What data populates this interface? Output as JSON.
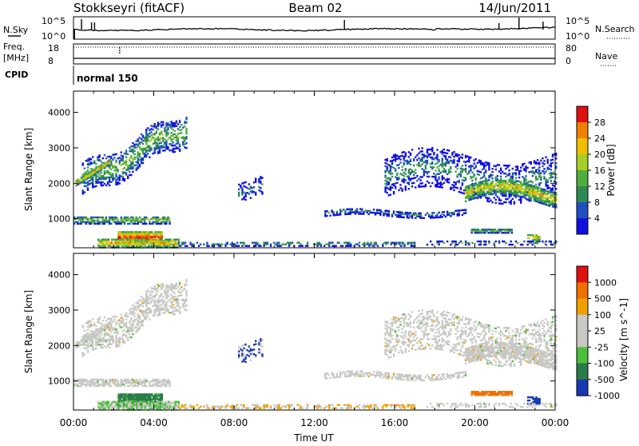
{
  "header": {
    "station": "Stokkseyri (fitACF)",
    "beam": "Beam 02",
    "date": "14/Jun/2011"
  },
  "ancillary": {
    "nsky_label": "N.Sky",
    "nsearch_label": "N.Search",
    "freq_label_1": "Freq.",
    "freq_label_2": "[MHz]",
    "nave_label": "Nave",
    "cpid_label": "CPID",
    "cpid_value": "normal 150",
    "noise_ticks": [
      "10^5",
      "10^0"
    ],
    "freq_ticks": [
      "18",
      "8"
    ],
    "nave_ticks": [
      "80",
      "0"
    ]
  },
  "colors": {
    "power": [
      "#1010e0",
      "#2050c0",
      "#2e8b57",
      "#4fae3c",
      "#a8cc28",
      "#f0c000",
      "#f08000",
      "#e01010"
    ],
    "velocity": [
      "#1838b0",
      "#2a7a4a",
      "#4bbf3a",
      "#c8c8c4",
      "#c8c8c4",
      "#f0a000",
      "#f07000",
      "#e01010"
    ]
  },
  "chart_data": [
    {
      "type": "heatmap",
      "title": "Power",
      "ylabel": "Slant Range [km]",
      "xlabel": "",
      "x_range": [
        "00:00",
        "24:00"
      ],
      "ylim": [
        180,
        4600
      ],
      "x_ticks": [
        "00:00",
        "04:00",
        "08:00",
        "12:00",
        "16:00",
        "20:00",
        "00:00"
      ],
      "y_ticks": [
        1000,
        2000,
        3000,
        4000
      ],
      "colorbar_label": "Power [dB]",
      "colorbar_ticks": [
        "28",
        "24",
        "20",
        "16",
        "12",
        "8",
        "4"
      ],
      "colorbar_range": [
        0,
        30
      ]
    },
    {
      "type": "heatmap",
      "title": "Velocity",
      "ylabel": "Slant Range [km]",
      "xlabel": "Time UT",
      "x_range": [
        "00:00",
        "24:00"
      ],
      "ylim": [
        180,
        4600
      ],
      "x_ticks": [
        "00:00",
        "04:00",
        "08:00",
        "12:00",
        "16:00",
        "20:00",
        "00:00"
      ],
      "y_ticks": [
        1000,
        2000,
        3000,
        4000
      ],
      "colorbar_label": "Velocity [m s^-1]",
      "colorbar_ticks": [
        "1000",
        "500",
        "100",
        "25",
        "-25",
        "-100",
        "-500",
        "-1000"
      ]
    }
  ]
}
